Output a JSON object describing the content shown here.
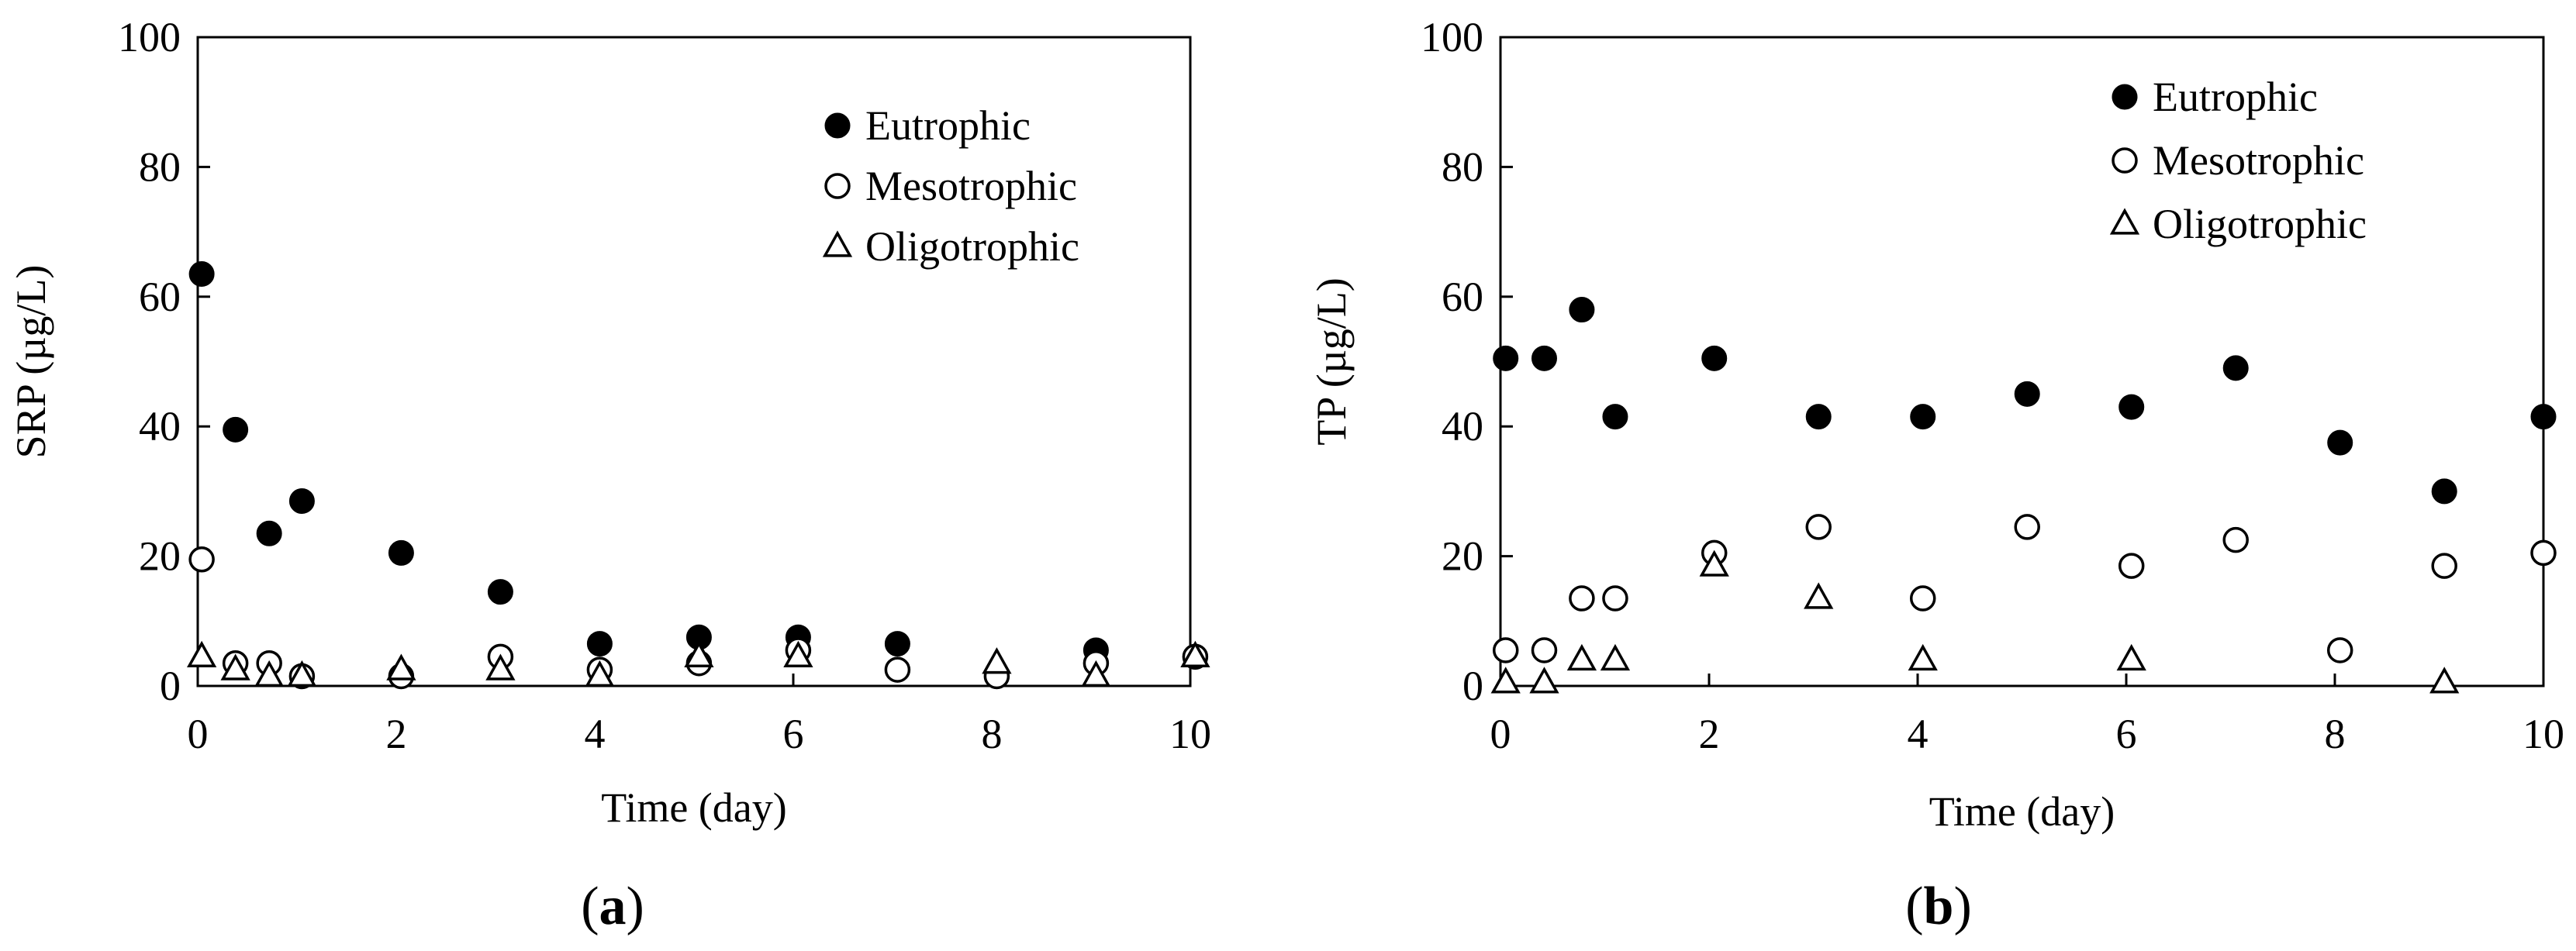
{
  "chart_data": [
    {
      "type": "scatter",
      "panel_label": "(a)",
      "xlabel": "Time (day)",
      "ylabel": "SRP (µg/L)",
      "xlim": [
        0,
        10
      ],
      "ylim": [
        0,
        100
      ],
      "xticks": [
        "0",
        "2",
        "4",
        "6",
        "8",
        "10"
      ],
      "yticks": [
        "0",
        "20",
        "40",
        "60",
        "80",
        "100"
      ],
      "legend_position": "top-right",
      "series": [
        {
          "name": "Eutrophic",
          "marker": "filled-circle",
          "points": [
            [
              0.04,
              63.5
            ],
            [
              0.38,
              39.5
            ],
            [
              0.72,
              23.5
            ],
            [
              1.05,
              28.5
            ],
            [
              2.05,
              20.5
            ],
            [
              3.05,
              14.5
            ],
            [
              4.05,
              6.5
            ],
            [
              5.05,
              7.5
            ],
            [
              6.05,
              7.5
            ],
            [
              7.05,
              6.5
            ],
            [
              9.05,
              5.5
            ],
            [
              10.05,
              4.5
            ]
          ]
        },
        {
          "name": "Mesotrophic",
          "marker": "open-circle",
          "points": [
            [
              0.04,
              19.5
            ],
            [
              0.38,
              3.5
            ],
            [
              0.72,
              3.5
            ],
            [
              1.05,
              1.5
            ],
            [
              2.05,
              1.5
            ],
            [
              3.05,
              4.5
            ],
            [
              4.05,
              2.5
            ],
            [
              5.05,
              3.5
            ],
            [
              6.05,
              5.5
            ],
            [
              7.05,
              2.5
            ],
            [
              8.05,
              1.5
            ],
            [
              9.05,
              3.5
            ],
            [
              10.05,
              4.5
            ]
          ]
        },
        {
          "name": "Oligotrophic",
          "marker": "open-triangle",
          "points": [
            [
              0.04,
              4.5
            ],
            [
              0.38,
              2.5
            ],
            [
              0.72,
              1.5
            ],
            [
              1.05,
              1.5
            ],
            [
              2.05,
              2.5
            ],
            [
              3.05,
              2.5
            ],
            [
              4.05,
              1.5
            ],
            [
              5.05,
              4.5
            ],
            [
              6.05,
              4.5
            ],
            [
              8.05,
              3.5
            ],
            [
              9.05,
              1.5
            ],
            [
              10.05,
              4.5
            ]
          ]
        }
      ]
    },
    {
      "type": "scatter",
      "panel_label": "(b)",
      "xlabel": "Time (day)",
      "ylabel": "TP (µg/L)",
      "xlim": [
        0,
        10
      ],
      "ylim": [
        0,
        100
      ],
      "xticks": [
        "0",
        "2",
        "4",
        "6",
        "8",
        "10"
      ],
      "yticks": [
        "0",
        "20",
        "40",
        "60",
        "80",
        "100"
      ],
      "legend_position": "top-right",
      "series": [
        {
          "name": "Eutrophic",
          "marker": "filled-circle",
          "points": [
            [
              0.05,
              50.5
            ],
            [
              0.42,
              50.5
            ],
            [
              0.78,
              58.0
            ],
            [
              1.1,
              41.5
            ],
            [
              2.05,
              50.5
            ],
            [
              3.05,
              41.5
            ],
            [
              4.05,
              41.5
            ],
            [
              5.05,
              45.0
            ],
            [
              6.05,
              43.0
            ],
            [
              7.05,
              49.0
            ],
            [
              8.05,
              37.5
            ],
            [
              9.05,
              30.0
            ],
            [
              10.0,
              41.5
            ]
          ]
        },
        {
          "name": "Mesotrophic",
          "marker": "open-circle",
          "points": [
            [
              0.05,
              5.5
            ],
            [
              0.42,
              5.5
            ],
            [
              0.78,
              13.5
            ],
            [
              1.1,
              13.5
            ],
            [
              2.05,
              20.5
            ],
            [
              3.05,
              24.5
            ],
            [
              4.05,
              13.5
            ],
            [
              5.05,
              24.5
            ],
            [
              6.05,
              18.5
            ],
            [
              7.05,
              22.5
            ],
            [
              8.05,
              5.5
            ],
            [
              9.05,
              18.5
            ],
            [
              10.0,
              20.5
            ]
          ]
        },
        {
          "name": "Oligotrophic",
          "marker": "open-triangle",
          "points": [
            [
              0.05,
              0.5
            ],
            [
              0.42,
              0.5
            ],
            [
              0.78,
              4.0
            ],
            [
              1.1,
              4.0
            ],
            [
              2.05,
              18.5
            ],
            [
              3.05,
              13.5
            ],
            [
              4.05,
              4.0
            ],
            [
              6.05,
              4.0
            ],
            [
              9.05,
              0.5
            ]
          ]
        }
      ]
    }
  ]
}
